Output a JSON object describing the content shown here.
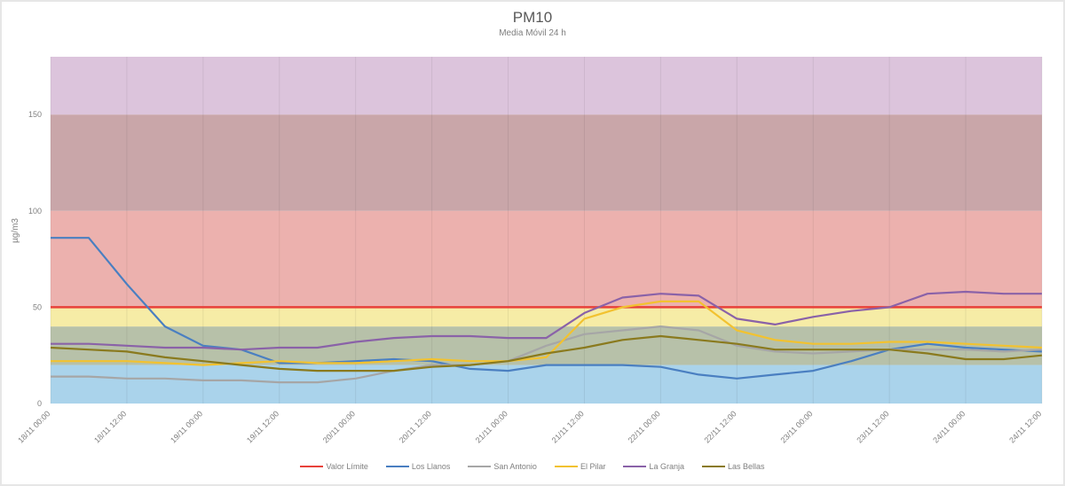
{
  "chart_data": {
    "type": "line",
    "title": "PM10",
    "subtitle": "Media Móvil 24 h",
    "ylabel": "µg/m3",
    "xlabel": "",
    "ylim": [
      0,
      180
    ],
    "yticks": [
      0,
      50,
      100,
      150
    ],
    "xtick_labels": [
      "18/11 00:00",
      "18/11 12:00",
      "19/11 00:00",
      "19/11 12:00",
      "20/11 00:00",
      "20/11 12:00",
      "21/11 00:00",
      "21/11 12:00",
      "22/11 00:00",
      "22/11 12:00",
      "23/11 00:00",
      "23/11 12:00",
      "24/11 00:00",
      "24/11 12:00"
    ],
    "x": [
      "18/11 00:00",
      "18/11 06:00",
      "18/11 12:00",
      "18/11 18:00",
      "19/11 00:00",
      "19/11 06:00",
      "19/11 12:00",
      "19/11 18:00",
      "20/11 00:00",
      "20/11 06:00",
      "20/11 12:00",
      "20/11 18:00",
      "21/11 00:00",
      "21/11 06:00",
      "21/11 12:00",
      "21/11 18:00",
      "22/11 00:00",
      "22/11 06:00",
      "22/11 12:00",
      "22/11 18:00",
      "23/11 00:00",
      "23/11 06:00",
      "23/11 12:00",
      "23/11 18:00",
      "24/11 00:00",
      "24/11 06:00",
      "24/11 12:00"
    ],
    "bands": [
      {
        "from": 0,
        "to": 20,
        "color": "#aad3eb"
      },
      {
        "from": 20,
        "to": 40,
        "color": "#b7c1a9"
      },
      {
        "from": 40,
        "to": 50,
        "color": "#f6eca6"
      },
      {
        "from": 50,
        "to": 100,
        "color": "#ecb1ae"
      },
      {
        "from": 100,
        "to": 150,
        "color": "#c9a6a9"
      },
      {
        "from": 150,
        "to": 180,
        "color": "#dcc4dc"
      }
    ],
    "grid": "vertical",
    "legend_position": "bottom",
    "series": [
      {
        "name": "Valor Límite",
        "color": "#e8413a",
        "values": [
          50,
          50,
          50,
          50,
          50,
          50,
          50,
          50,
          50,
          50,
          50,
          50,
          50,
          50,
          50,
          50,
          50,
          50,
          50,
          50,
          50,
          50,
          50,
          50,
          50,
          50,
          50
        ]
      },
      {
        "name": "Los Llanos",
        "color": "#4a7fc1",
        "values": [
          86,
          86,
          62,
          40,
          30,
          28,
          21,
          21,
          22,
          23,
          22,
          18,
          17,
          20,
          20,
          20,
          19,
          15,
          13,
          15,
          17,
          22,
          28,
          31,
          29,
          28,
          27
        ]
      },
      {
        "name": "San Antonio",
        "color": "#a6a6a6",
        "values": [
          14,
          14,
          13,
          13,
          12,
          12,
          11,
          11,
          13,
          17,
          20,
          20,
          22,
          30,
          36,
          38,
          40,
          38,
          30,
          27,
          26,
          27,
          28,
          28,
          28,
          27,
          28
        ]
      },
      {
        "name": "El Pilar",
        "color": "#f2c230",
        "values": [
          22,
          22,
          22,
          21,
          20,
          21,
          22,
          21,
          21,
          22,
          23,
          22,
          22,
          24,
          44,
          50,
          53,
          53,
          38,
          33,
          31,
          31,
          32,
          32,
          31,
          30,
          29
        ]
      },
      {
        "name": "La Granja",
        "color": "#8a62a8",
        "values": [
          31,
          31,
          30,
          29,
          29,
          28,
          29,
          29,
          32,
          34,
          35,
          35,
          34,
          34,
          47,
          55,
          57,
          56,
          44,
          41,
          45,
          48,
          50,
          57,
          58,
          57,
          57
        ]
      },
      {
        "name": "Las Bellas",
        "color": "#8a7a1e",
        "values": [
          29,
          28,
          27,
          24,
          22,
          20,
          18,
          17,
          17,
          17,
          19,
          20,
          22,
          26,
          29,
          33,
          35,
          33,
          31,
          28,
          28,
          28,
          28,
          26,
          23,
          23,
          25
        ]
      }
    ]
  }
}
